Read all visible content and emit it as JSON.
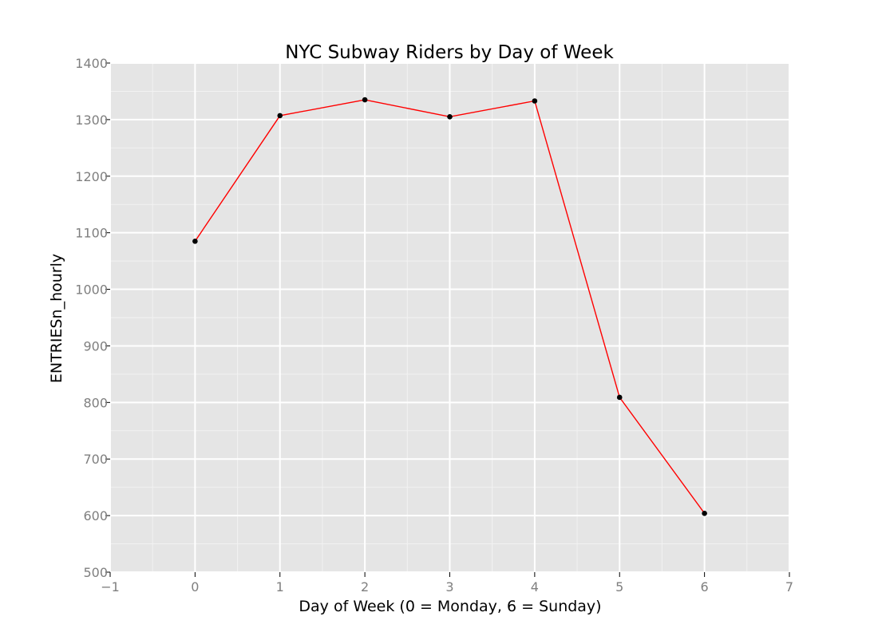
{
  "chart_data": {
    "type": "line",
    "title": "NYC Subway Riders by Day of Week",
    "xlabel": "Day of Week (0 = Monday, 6 = Sunday)",
    "ylabel": "ENTRIESn_hourly",
    "xlim": [
      -1,
      7
    ],
    "ylim": [
      500,
      1400
    ],
    "x_ticks": [
      -1,
      0,
      1,
      2,
      3,
      4,
      5,
      6,
      7
    ],
    "x_tick_labels": [
      "−1",
      "0",
      "1",
      "2",
      "3",
      "4",
      "5",
      "6",
      "7"
    ],
    "y_ticks": [
      500,
      600,
      700,
      800,
      900,
      1000,
      1100,
      1200,
      1300,
      1400
    ],
    "y_tick_labels": [
      "500",
      "600",
      "700",
      "800",
      "900",
      "1000",
      "1100",
      "1200",
      "1300",
      "1400"
    ],
    "grid": true,
    "legend": "none",
    "series": [
      {
        "x": [
          0,
          1,
          2,
          3,
          4,
          5,
          6
        ],
        "values": [
          1085,
          1307,
          1335,
          1305,
          1333,
          809,
          604
        ],
        "line_color": "#ff0000",
        "point_color": "#000000"
      }
    ]
  }
}
